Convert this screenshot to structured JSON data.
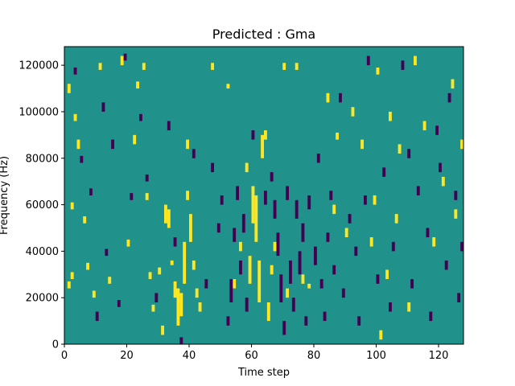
{
  "chart_data": {
    "type": "heatmap",
    "title": "Predicted : Gma",
    "xlabel": "Time step",
    "ylabel": "Frequency (Hz)",
    "xlim": [
      0,
      128
    ],
    "ylim": [
      0,
      128000
    ],
    "grid": false,
    "legend": "none",
    "x_ticks": [
      0,
      20,
      40,
      60,
      80,
      100,
      120
    ],
    "x_tick_labels": [
      "0",
      "20",
      "40",
      "60",
      "80",
      "100",
      "120"
    ],
    "y_ticks": [
      0,
      20000,
      40000,
      60000,
      80000,
      100000,
      120000
    ],
    "y_tick_labels": [
      "0",
      "20000",
      "40000",
      "60000",
      "80000",
      "100000",
      "120000"
    ],
    "background_value": 0,
    "value_levels": [
      -1,
      0,
      1
    ],
    "colors": {
      "low": "#440154",
      "mid": "#21918c",
      "high": "#fde725"
    },
    "bin_width_hz": 1000,
    "high_cells": [
      {
        "t": 1,
        "f0": 24000,
        "f1": 27000
      },
      {
        "t": 2,
        "f0": 28000,
        "f1": 31000
      },
      {
        "t": 1,
        "f0": 108000,
        "f1": 112000
      },
      {
        "t": 2,
        "f0": 58000,
        "f1": 61000
      },
      {
        "t": 3,
        "f0": 96000,
        "f1": 99000
      },
      {
        "t": 4,
        "f0": 84000,
        "f1": 88000
      },
      {
        "t": 6,
        "f0": 52000,
        "f1": 55000
      },
      {
        "t": 7,
        "f0": 32000,
        "f1": 35000
      },
      {
        "t": 9,
        "f0": 20000,
        "f1": 23000
      },
      {
        "t": 11,
        "f0": 118000,
        "f1": 121000
      },
      {
        "t": 14,
        "f0": 26000,
        "f1": 29000
      },
      {
        "t": 18,
        "f0": 120000,
        "f1": 124000
      },
      {
        "t": 20,
        "f0": 42000,
        "f1": 45000
      },
      {
        "t": 22,
        "f0": 86000,
        "f1": 90000
      },
      {
        "t": 23,
        "f0": 110000,
        "f1": 113000
      },
      {
        "t": 25,
        "f0": 118000,
        "f1": 121000
      },
      {
        "t": 26,
        "f0": 62000,
        "f1": 65000
      },
      {
        "t": 27,
        "f0": 28000,
        "f1": 31000
      },
      {
        "t": 28,
        "f0": 14000,
        "f1": 17000
      },
      {
        "t": 30,
        "f0": 30000,
        "f1": 33000
      },
      {
        "t": 31,
        "f0": 4000,
        "f1": 8000
      },
      {
        "t": 32,
        "f0": 52000,
        "f1": 60000
      },
      {
        "t": 33,
        "f0": 50000,
        "f1": 58000
      },
      {
        "t": 34,
        "f0": 34000,
        "f1": 36000
      },
      {
        "t": 35,
        "f0": 20000,
        "f1": 27000
      },
      {
        "t": 36,
        "f0": 8000,
        "f1": 24000
      },
      {
        "t": 37,
        "f0": 12000,
        "f1": 22000
      },
      {
        "t": 38,
        "f0": 26000,
        "f1": 44000
      },
      {
        "t": 39,
        "f0": 62000,
        "f1": 66000
      },
      {
        "t": 39,
        "f0": 84000,
        "f1": 88000
      },
      {
        "t": 40,
        "f0": 44000,
        "f1": 56000
      },
      {
        "t": 41,
        "f0": 32000,
        "f1": 36000
      },
      {
        "t": 42,
        "f0": 20000,
        "f1": 24000
      },
      {
        "t": 43,
        "f0": 14000,
        "f1": 18000
      },
      {
        "t": 47,
        "f0": 118000,
        "f1": 121000
      },
      {
        "t": 52,
        "f0": 110000,
        "f1": 112000
      },
      {
        "t": 54,
        "f0": 24000,
        "f1": 28000
      },
      {
        "t": 56,
        "f0": 40000,
        "f1": 44000
      },
      {
        "t": 58,
        "f0": 74000,
        "f1": 78000
      },
      {
        "t": 59,
        "f0": 26000,
        "f1": 38000
      },
      {
        "t": 60,
        "f0": 52000,
        "f1": 68000
      },
      {
        "t": 61,
        "f0": 44000,
        "f1": 64000
      },
      {
        "t": 62,
        "f0": 18000,
        "f1": 36000
      },
      {
        "t": 63,
        "f0": 80000,
        "f1": 90000
      },
      {
        "t": 64,
        "f0": 88000,
        "f1": 92000
      },
      {
        "t": 65,
        "f0": 10000,
        "f1": 18000
      },
      {
        "t": 66,
        "f0": 30000,
        "f1": 34000
      },
      {
        "t": 67,
        "f0": 40000,
        "f1": 44000
      },
      {
        "t": 70,
        "f0": 118000,
        "f1": 121000
      },
      {
        "t": 71,
        "f0": 20000,
        "f1": 24000
      },
      {
        "t": 74,
        "f0": 118000,
        "f1": 121000
      },
      {
        "t": 76,
        "f0": 26000,
        "f1": 30000
      },
      {
        "t": 78,
        "f0": 24000,
        "f1": 26000
      },
      {
        "t": 84,
        "f0": 104000,
        "f1": 108000
      },
      {
        "t": 86,
        "f0": 56000,
        "f1": 60000
      },
      {
        "t": 87,
        "f0": 88000,
        "f1": 91000
      },
      {
        "t": 90,
        "f0": 46000,
        "f1": 50000
      },
      {
        "t": 92,
        "f0": 98000,
        "f1": 102000
      },
      {
        "t": 95,
        "f0": 84000,
        "f1": 88000
      },
      {
        "t": 98,
        "f0": 42000,
        "f1": 46000
      },
      {
        "t": 99,
        "f0": 60000,
        "f1": 64000
      },
      {
        "t": 100,
        "f0": 116000,
        "f1": 119000
      },
      {
        "t": 101,
        "f0": 2000,
        "f1": 6000
      },
      {
        "t": 103,
        "f0": 28000,
        "f1": 32000
      },
      {
        "t": 104,
        "f0": 96000,
        "f1": 100000
      },
      {
        "t": 106,
        "f0": 52000,
        "f1": 56000
      },
      {
        "t": 107,
        "f0": 82000,
        "f1": 86000
      },
      {
        "t": 110,
        "f0": 14000,
        "f1": 18000
      },
      {
        "t": 112,
        "f0": 120000,
        "f1": 124000
      },
      {
        "t": 115,
        "f0": 92000,
        "f1": 96000
      },
      {
        "t": 118,
        "f0": 42000,
        "f1": 46000
      },
      {
        "t": 121,
        "f0": 68000,
        "f1": 72000
      },
      {
        "t": 124,
        "f0": 110000,
        "f1": 114000
      },
      {
        "t": 125,
        "f0": 54000,
        "f1": 58000
      },
      {
        "t": 127,
        "f0": 84000,
        "f1": 88000
      }
    ],
    "low_cells": [
      {
        "t": 3,
        "f0": 116000,
        "f1": 119000
      },
      {
        "t": 5,
        "f0": 78000,
        "f1": 81000
      },
      {
        "t": 8,
        "f0": 64000,
        "f1": 67000
      },
      {
        "t": 10,
        "f0": 10000,
        "f1": 14000
      },
      {
        "t": 12,
        "f0": 100000,
        "f1": 104000
      },
      {
        "t": 13,
        "f0": 38000,
        "f1": 41000
      },
      {
        "t": 15,
        "f0": 84000,
        "f1": 88000
      },
      {
        "t": 17,
        "f0": 16000,
        "f1": 19000
      },
      {
        "t": 19,
        "f0": 122000,
        "f1": 125000
      },
      {
        "t": 21,
        "f0": 62000,
        "f1": 65000
      },
      {
        "t": 24,
        "f0": 96000,
        "f1": 99000
      },
      {
        "t": 26,
        "f0": 70000,
        "f1": 73000
      },
      {
        "t": 29,
        "f0": 18000,
        "f1": 22000
      },
      {
        "t": 33,
        "f0": 92000,
        "f1": 96000
      },
      {
        "t": 35,
        "f0": 42000,
        "f1": 46000
      },
      {
        "t": 37,
        "f0": 0,
        "f1": 3000
      },
      {
        "t": 41,
        "f0": 80000,
        "f1": 84000
      },
      {
        "t": 45,
        "f0": 24000,
        "f1": 28000
      },
      {
        "t": 47,
        "f0": 74000,
        "f1": 78000
      },
      {
        "t": 49,
        "f0": 48000,
        "f1": 52000
      },
      {
        "t": 50,
        "f0": 60000,
        "f1": 64000
      },
      {
        "t": 52,
        "f0": 8000,
        "f1": 12000
      },
      {
        "t": 53,
        "f0": 18000,
        "f1": 28000
      },
      {
        "t": 54,
        "f0": 44000,
        "f1": 50000
      },
      {
        "t": 55,
        "f0": 62000,
        "f1": 68000
      },
      {
        "t": 56,
        "f0": 30000,
        "f1": 36000
      },
      {
        "t": 57,
        "f0": 48000,
        "f1": 56000
      },
      {
        "t": 58,
        "f0": 14000,
        "f1": 20000
      },
      {
        "t": 60,
        "f0": 88000,
        "f1": 92000
      },
      {
        "t": 64,
        "f0": 60000,
        "f1": 66000
      },
      {
        "t": 66,
        "f0": 70000,
        "f1": 74000
      },
      {
        "t": 67,
        "f0": 54000,
        "f1": 62000
      },
      {
        "t": 68,
        "f0": 38000,
        "f1": 48000
      },
      {
        "t": 69,
        "f0": 18000,
        "f1": 30000
      },
      {
        "t": 70,
        "f0": 4000,
        "f1": 10000
      },
      {
        "t": 71,
        "f0": 62000,
        "f1": 68000
      },
      {
        "t": 72,
        "f0": 26000,
        "f1": 36000
      },
      {
        "t": 73,
        "f0": 14000,
        "f1": 20000
      },
      {
        "t": 74,
        "f0": 54000,
        "f1": 62000
      },
      {
        "t": 75,
        "f0": 30000,
        "f1": 40000
      },
      {
        "t": 76,
        "f0": 44000,
        "f1": 52000
      },
      {
        "t": 77,
        "f0": 8000,
        "f1": 12000
      },
      {
        "t": 78,
        "f0": 58000,
        "f1": 64000
      },
      {
        "t": 80,
        "f0": 34000,
        "f1": 42000
      },
      {
        "t": 81,
        "f0": 78000,
        "f1": 82000
      },
      {
        "t": 82,
        "f0": 24000,
        "f1": 28000
      },
      {
        "t": 83,
        "f0": 10000,
        "f1": 14000
      },
      {
        "t": 84,
        "f0": 44000,
        "f1": 48000
      },
      {
        "t": 85,
        "f0": 62000,
        "f1": 66000
      },
      {
        "t": 86,
        "f0": 30000,
        "f1": 34000
      },
      {
        "t": 88,
        "f0": 104000,
        "f1": 108000
      },
      {
        "t": 89,
        "f0": 20000,
        "f1": 24000
      },
      {
        "t": 91,
        "f0": 52000,
        "f1": 56000
      },
      {
        "t": 93,
        "f0": 38000,
        "f1": 42000
      },
      {
        "t": 94,
        "f0": 8000,
        "f1": 12000
      },
      {
        "t": 96,
        "f0": 60000,
        "f1": 64000
      },
      {
        "t": 97,
        "f0": 120000,
        "f1": 124000
      },
      {
        "t": 100,
        "f0": 26000,
        "f1": 30000
      },
      {
        "t": 102,
        "f0": 72000,
        "f1": 76000
      },
      {
        "t": 104,
        "f0": 14000,
        "f1": 18000
      },
      {
        "t": 105,
        "f0": 40000,
        "f1": 44000
      },
      {
        "t": 108,
        "f0": 118000,
        "f1": 122000
      },
      {
        "t": 110,
        "f0": 80000,
        "f1": 84000
      },
      {
        "t": 111,
        "f0": 24000,
        "f1": 28000
      },
      {
        "t": 113,
        "f0": 64000,
        "f1": 68000
      },
      {
        "t": 116,
        "f0": 46000,
        "f1": 50000
      },
      {
        "t": 117,
        "f0": 10000,
        "f1": 14000
      },
      {
        "t": 119,
        "f0": 90000,
        "f1": 94000
      },
      {
        "t": 120,
        "f0": 74000,
        "f1": 78000
      },
      {
        "t": 122,
        "f0": 32000,
        "f1": 36000
      },
      {
        "t": 123,
        "f0": 104000,
        "f1": 108000
      },
      {
        "t": 125,
        "f0": 62000,
        "f1": 66000
      },
      {
        "t": 126,
        "f0": 18000,
        "f1": 22000
      },
      {
        "t": 127,
        "f0": 40000,
        "f1": 44000
      }
    ]
  }
}
